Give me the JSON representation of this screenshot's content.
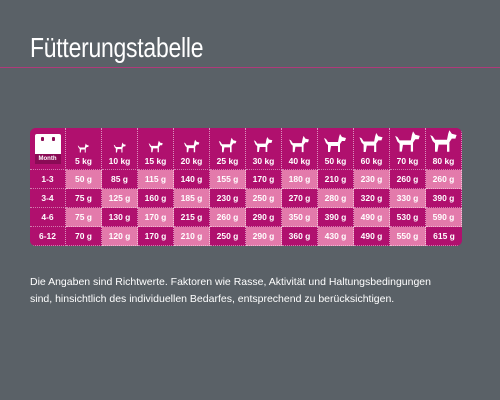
{
  "page": {
    "title": "Fütterungstabelle"
  },
  "table": {
    "month_icon_label": "Month",
    "weights": [
      "5 kg",
      "10 kg",
      "15 kg",
      "20 kg",
      "25 kg",
      "30 kg",
      "40 kg",
      "50 kg",
      "60 kg",
      "70 kg",
      "80 kg"
    ],
    "rows": [
      {
        "label": "1-3",
        "values": [
          "50 g",
          "85 g",
          "115 g",
          "140 g",
          "155 g",
          "170 g",
          "180 g",
          "210 g",
          "230 g",
          "260 g",
          "260 g"
        ]
      },
      {
        "label": "3-4",
        "values": [
          "75 g",
          "125 g",
          "160 g",
          "185 g",
          "230 g",
          "250 g",
          "270 g",
          "280 g",
          "320 g",
          "330 g",
          "390 g"
        ]
      },
      {
        "label": "4-6",
        "values": [
          "75 g",
          "130 g",
          "170 g",
          "215 g",
          "260 g",
          "290 g",
          "350 g",
          "390 g",
          "490 g",
          "530 g",
          "590 g"
        ]
      },
      {
        "label": "6-12",
        "values": [
          "70 g",
          "120 g",
          "170 g",
          "210 g",
          "250 g",
          "290 g",
          "360 g",
          "430 g",
          "490 g",
          "550 g",
          "615 g"
        ]
      }
    ],
    "colors": {
      "dark": "#b0106e",
      "light": "#e37aab",
      "background": "#5a6167"
    }
  },
  "note": {
    "line1": "Die Angaben sind Richtwerte. Faktoren wie Rasse, Aktivität und Haltungsbedingungen",
    "line2": "sind, hinsichtlich des individuellen Bedarfes, entsprechend zu berücksichtigen."
  }
}
